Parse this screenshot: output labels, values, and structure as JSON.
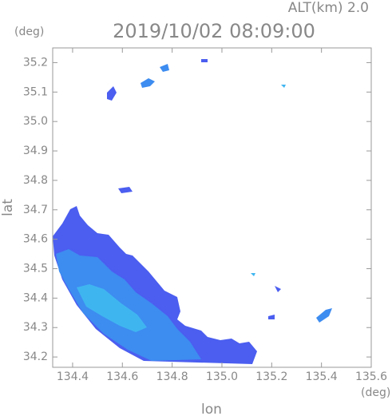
{
  "chart_data": {
    "type": "map",
    "title": "2019/10/02 08:09:00",
    "subtitle": "ALT(km) 2.0",
    "xlabel": "lon",
    "ylabel": "lat",
    "xunit": "(deg)",
    "yunit": "(deg)",
    "xlim": [
      134.32,
      135.6
    ],
    "ylim": [
      34.165,
      35.25
    ],
    "xticks": [
      134.4,
      134.6,
      134.8,
      {
        "value": 135,
        "label": "135.0"
      },
      135.2,
      135.4,
      135.6
    ],
    "yticks": [
      34.2,
      34.3,
      34.4,
      34.5,
      34.6,
      34.7,
      34.8,
      34.9,
      {
        "value": 35,
        "label": "35.0"
      },
      35.1,
      35.2
    ]
  }
}
